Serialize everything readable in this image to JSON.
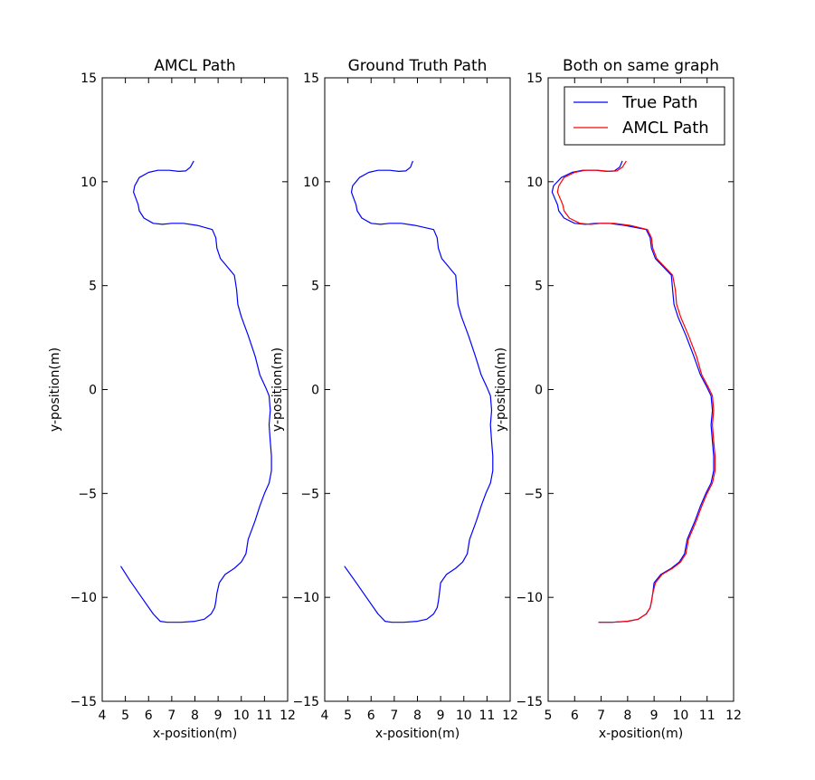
{
  "chart_data": [
    {
      "type": "line",
      "title": "AMCL Path",
      "xlabel": "x-position(m)",
      "ylabel": "y-position(m)",
      "xlim": [
        4,
        12
      ],
      "ylim": [
        -15,
        15
      ],
      "xticks": [
        4,
        5,
        6,
        7,
        8,
        9,
        10,
        11,
        12
      ],
      "yticks": [
        -15,
        -10,
        -5,
        0,
        5,
        10,
        15
      ],
      "grid": false,
      "series": [
        {
          "color": "#0000ff",
          "x": [
            7.95,
            7.8,
            7.6,
            7.3,
            6.9,
            6.4,
            6.0,
            5.6,
            5.4,
            5.35,
            5.45,
            5.55,
            5.6,
            5.8,
            6.2,
            6.6,
            7.0,
            7.5,
            8.1,
            8.75,
            8.9,
            8.95,
            9.1,
            9.4,
            9.7,
            9.8,
            9.85,
            10.0,
            10.3,
            10.6,
            10.8,
            11.05,
            11.2,
            11.25,
            11.2,
            11.25,
            11.3,
            11.3,
            11.2,
            11.0,
            10.8,
            10.6,
            10.5,
            10.3,
            10.2,
            10.0,
            9.7,
            9.3,
            9.05,
            8.95,
            8.9,
            8.85,
            8.7,
            8.4,
            8.0,
            7.4,
            6.8,
            6.5,
            6.2,
            5.7,
            5.2,
            4.8
          ],
          "y": [
            11.0,
            10.7,
            10.52,
            10.5,
            10.55,
            10.55,
            10.45,
            10.2,
            9.8,
            9.5,
            9.2,
            8.9,
            8.6,
            8.25,
            8.0,
            7.95,
            8.0,
            8.0,
            7.9,
            7.7,
            7.3,
            6.8,
            6.3,
            5.9,
            5.5,
            4.8,
            4.1,
            3.5,
            2.6,
            1.6,
            0.7,
            0.1,
            -0.3,
            -1.0,
            -1.7,
            -2.5,
            -3.2,
            -3.9,
            -4.5,
            -5.0,
            -5.6,
            -6.3,
            -6.6,
            -7.2,
            -7.9,
            -8.3,
            -8.6,
            -8.9,
            -9.3,
            -9.8,
            -10.2,
            -10.5,
            -10.8,
            -11.05,
            -11.15,
            -11.2,
            -11.2,
            -11.15,
            -10.8,
            -10.0,
            -9.2,
            -8.5
          ]
        }
      ]
    },
    {
      "type": "line",
      "title": "Ground Truth Path",
      "xlabel": "x-position(m)",
      "ylabel": "y-position(m)",
      "xlim": [
        4,
        12
      ],
      "ylim": [
        -15,
        15
      ],
      "xticks": [
        4,
        5,
        6,
        7,
        8,
        9,
        10,
        11,
        12
      ],
      "yticks": [
        -15,
        -10,
        -5,
        0,
        5,
        10,
        15
      ],
      "grid": false,
      "series": [
        {
          "color": "#0000ff",
          "x": [
            7.8,
            7.7,
            7.5,
            7.2,
            6.8,
            6.3,
            5.9,
            5.5,
            5.2,
            5.15,
            5.25,
            5.35,
            5.4,
            5.6,
            6.0,
            6.4,
            6.8,
            7.3,
            7.9,
            8.7,
            8.85,
            8.9,
            9.05,
            9.35,
            9.65,
            9.7,
            9.75,
            9.9,
            10.2,
            10.5,
            10.75,
            11.0,
            11.15,
            11.2,
            11.15,
            11.2,
            11.25,
            11.25,
            11.15,
            10.95,
            10.75,
            10.55,
            10.45,
            10.25,
            10.15,
            9.95,
            9.65,
            9.25,
            9.0,
            8.95,
            8.9,
            8.85,
            8.7,
            8.4,
            8.0,
            7.4,
            6.9,
            6.6,
            6.3,
            5.8,
            5.3,
            4.85
          ],
          "y": [
            11.0,
            10.7,
            10.52,
            10.5,
            10.55,
            10.55,
            10.45,
            10.2,
            9.8,
            9.5,
            9.2,
            8.9,
            8.6,
            8.25,
            8.0,
            7.95,
            8.0,
            8.0,
            7.9,
            7.7,
            7.3,
            6.8,
            6.3,
            5.9,
            5.5,
            4.8,
            4.1,
            3.5,
            2.6,
            1.6,
            0.7,
            0.1,
            -0.3,
            -1.0,
            -1.7,
            -2.5,
            -3.2,
            -3.9,
            -4.5,
            -5.0,
            -5.6,
            -6.3,
            -6.6,
            -7.2,
            -7.9,
            -8.3,
            -8.6,
            -8.9,
            -9.3,
            -9.8,
            -10.2,
            -10.5,
            -10.8,
            -11.05,
            -11.15,
            -11.2,
            -11.2,
            -11.15,
            -10.8,
            -10.0,
            -9.2,
            -8.5
          ]
        }
      ]
    },
    {
      "type": "line",
      "title": "Both on same graph",
      "xlabel": "x-position(m)",
      "ylabel": "y-position(m)",
      "xlim": [
        5,
        12
      ],
      "ylim": [
        -15,
        15
      ],
      "xticks": [
        5,
        6,
        7,
        8,
        9,
        10,
        11,
        12
      ],
      "yticks": [
        -15,
        -10,
        -5,
        0,
        5,
        10,
        15
      ],
      "grid": false,
      "legend": "top-right",
      "series": [
        {
          "name": "True Path",
          "color": "#0000ff",
          "x": [
            7.8,
            7.7,
            7.5,
            7.2,
            6.8,
            6.3,
            5.9,
            5.5,
            5.2,
            5.15,
            5.25,
            5.35,
            5.4,
            5.6,
            6.0,
            6.4,
            6.8,
            7.3,
            7.9,
            8.7,
            8.85,
            8.9,
            9.05,
            9.35,
            9.65,
            9.7,
            9.75,
            9.9,
            10.2,
            10.5,
            10.75,
            11.0,
            11.15,
            11.2,
            11.15,
            11.2,
            11.25,
            11.25,
            11.15,
            10.95,
            10.75,
            10.55,
            10.45,
            10.25,
            10.15,
            9.95,
            9.65,
            9.25,
            9.0,
            8.95,
            8.9,
            8.85,
            8.7,
            8.4,
            8.0,
            7.4,
            6.9
          ],
          "y": [
            11.0,
            10.7,
            10.52,
            10.5,
            10.55,
            10.55,
            10.45,
            10.2,
            9.8,
            9.5,
            9.2,
            8.9,
            8.6,
            8.25,
            8.0,
            7.95,
            8.0,
            8.0,
            7.9,
            7.7,
            7.3,
            6.8,
            6.3,
            5.9,
            5.5,
            4.8,
            4.1,
            3.5,
            2.6,
            1.6,
            0.7,
            0.1,
            -0.3,
            -1.0,
            -1.7,
            -2.5,
            -3.2,
            -3.9,
            -4.5,
            -5.0,
            -5.6,
            -6.3,
            -6.6,
            -7.2,
            -7.9,
            -8.3,
            -8.6,
            -8.9,
            -9.3,
            -9.8,
            -10.2,
            -10.5,
            -10.8,
            -11.05,
            -11.15,
            -11.2,
            -11.2
          ]
        },
        {
          "name": "AMCL Path",
          "color": "#ff0000",
          "x": [
            7.95,
            7.8,
            7.6,
            7.3,
            6.9,
            6.4,
            6.0,
            5.6,
            5.4,
            5.35,
            5.45,
            5.55,
            5.6,
            5.8,
            6.2,
            6.6,
            7.0,
            7.5,
            8.1,
            8.75,
            8.9,
            8.95,
            9.1,
            9.4,
            9.7,
            9.8,
            9.85,
            10.0,
            10.3,
            10.6,
            10.8,
            11.05,
            11.2,
            11.25,
            11.2,
            11.25,
            11.3,
            11.3,
            11.2,
            11.0,
            10.8,
            10.6,
            10.5,
            10.3,
            10.2,
            10.0,
            9.7,
            9.3,
            9.05,
            8.95,
            8.9,
            8.85,
            8.7,
            8.4,
            8.0,
            7.4,
            6.9
          ],
          "y": [
            11.0,
            10.7,
            10.52,
            10.5,
            10.55,
            10.55,
            10.45,
            10.2,
            9.8,
            9.5,
            9.2,
            8.9,
            8.6,
            8.25,
            8.0,
            7.95,
            8.0,
            8.0,
            7.9,
            7.7,
            7.3,
            6.8,
            6.3,
            5.9,
            5.5,
            4.8,
            4.1,
            3.5,
            2.6,
            1.6,
            0.7,
            0.1,
            -0.3,
            -1.0,
            -1.7,
            -2.5,
            -3.2,
            -3.9,
            -4.5,
            -5.0,
            -5.6,
            -6.3,
            -6.6,
            -7.2,
            -7.9,
            -8.3,
            -8.6,
            -8.9,
            -9.3,
            -9.8,
            -10.2,
            -10.5,
            -10.8,
            -11.05,
            -11.15,
            -11.2,
            -11.2
          ]
        }
      ]
    }
  ]
}
